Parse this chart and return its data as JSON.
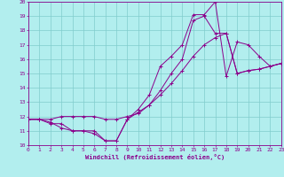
{
  "xlabel": "Windchill (Refroidissement éolien,°C)",
  "bg_color": "#b2eeee",
  "line_color": "#8b008b",
  "grid_color": "#80cccc",
  "xlim": [
    0,
    23
  ],
  "ylim": [
    10,
    20
  ],
  "xticks": [
    0,
    1,
    2,
    3,
    4,
    5,
    6,
    7,
    8,
    9,
    10,
    11,
    12,
    13,
    14,
    15,
    16,
    17,
    18,
    19,
    20,
    21,
    22,
    23
  ],
  "yticks": [
    10,
    11,
    12,
    13,
    14,
    15,
    16,
    17,
    18,
    19,
    20
  ],
  "series": [
    {
      "x": [
        0,
        1,
        2,
        3,
        4,
        5,
        6,
        7,
        8,
        9,
        10,
        11,
        12,
        13,
        14,
        15,
        16,
        17,
        18,
        19,
        20,
        21,
        22,
        23
      ],
      "y": [
        11.8,
        11.8,
        11.6,
        11.2,
        11.0,
        11.0,
        10.8,
        10.3,
        10.3,
        11.8,
        12.5,
        13.5,
        15.5,
        16.2,
        17.0,
        19.1,
        19.1,
        20.0,
        14.8,
        17.2,
        17.0,
        16.2,
        15.5,
        15.7
      ]
    },
    {
      "x": [
        0,
        1,
        2,
        3,
        4,
        5,
        6,
        7,
        8,
        9,
        10,
        11,
        12,
        13,
        14,
        15,
        16,
        17,
        18,
        19,
        20,
        21,
        22,
        23
      ],
      "y": [
        11.8,
        11.8,
        11.5,
        11.5,
        11.0,
        11.0,
        11.0,
        10.3,
        10.3,
        11.8,
        12.3,
        12.8,
        13.8,
        15.0,
        16.0,
        18.7,
        19.0,
        17.8,
        17.8,
        15.0,
        15.2,
        15.3,
        15.5,
        15.7
      ]
    },
    {
      "x": [
        0,
        1,
        2,
        3,
        4,
        5,
        6,
        7,
        8,
        9,
        10,
        11,
        12,
        13,
        14,
        15,
        16,
        17,
        18,
        19,
        20,
        21,
        22,
        23
      ],
      "y": [
        11.8,
        11.8,
        11.8,
        12.0,
        12.0,
        12.0,
        12.0,
        11.8,
        11.8,
        12.0,
        12.2,
        12.8,
        13.5,
        14.3,
        15.2,
        16.2,
        17.0,
        17.5,
        17.8,
        15.0,
        15.2,
        15.3,
        15.5,
        15.7
      ]
    }
  ]
}
